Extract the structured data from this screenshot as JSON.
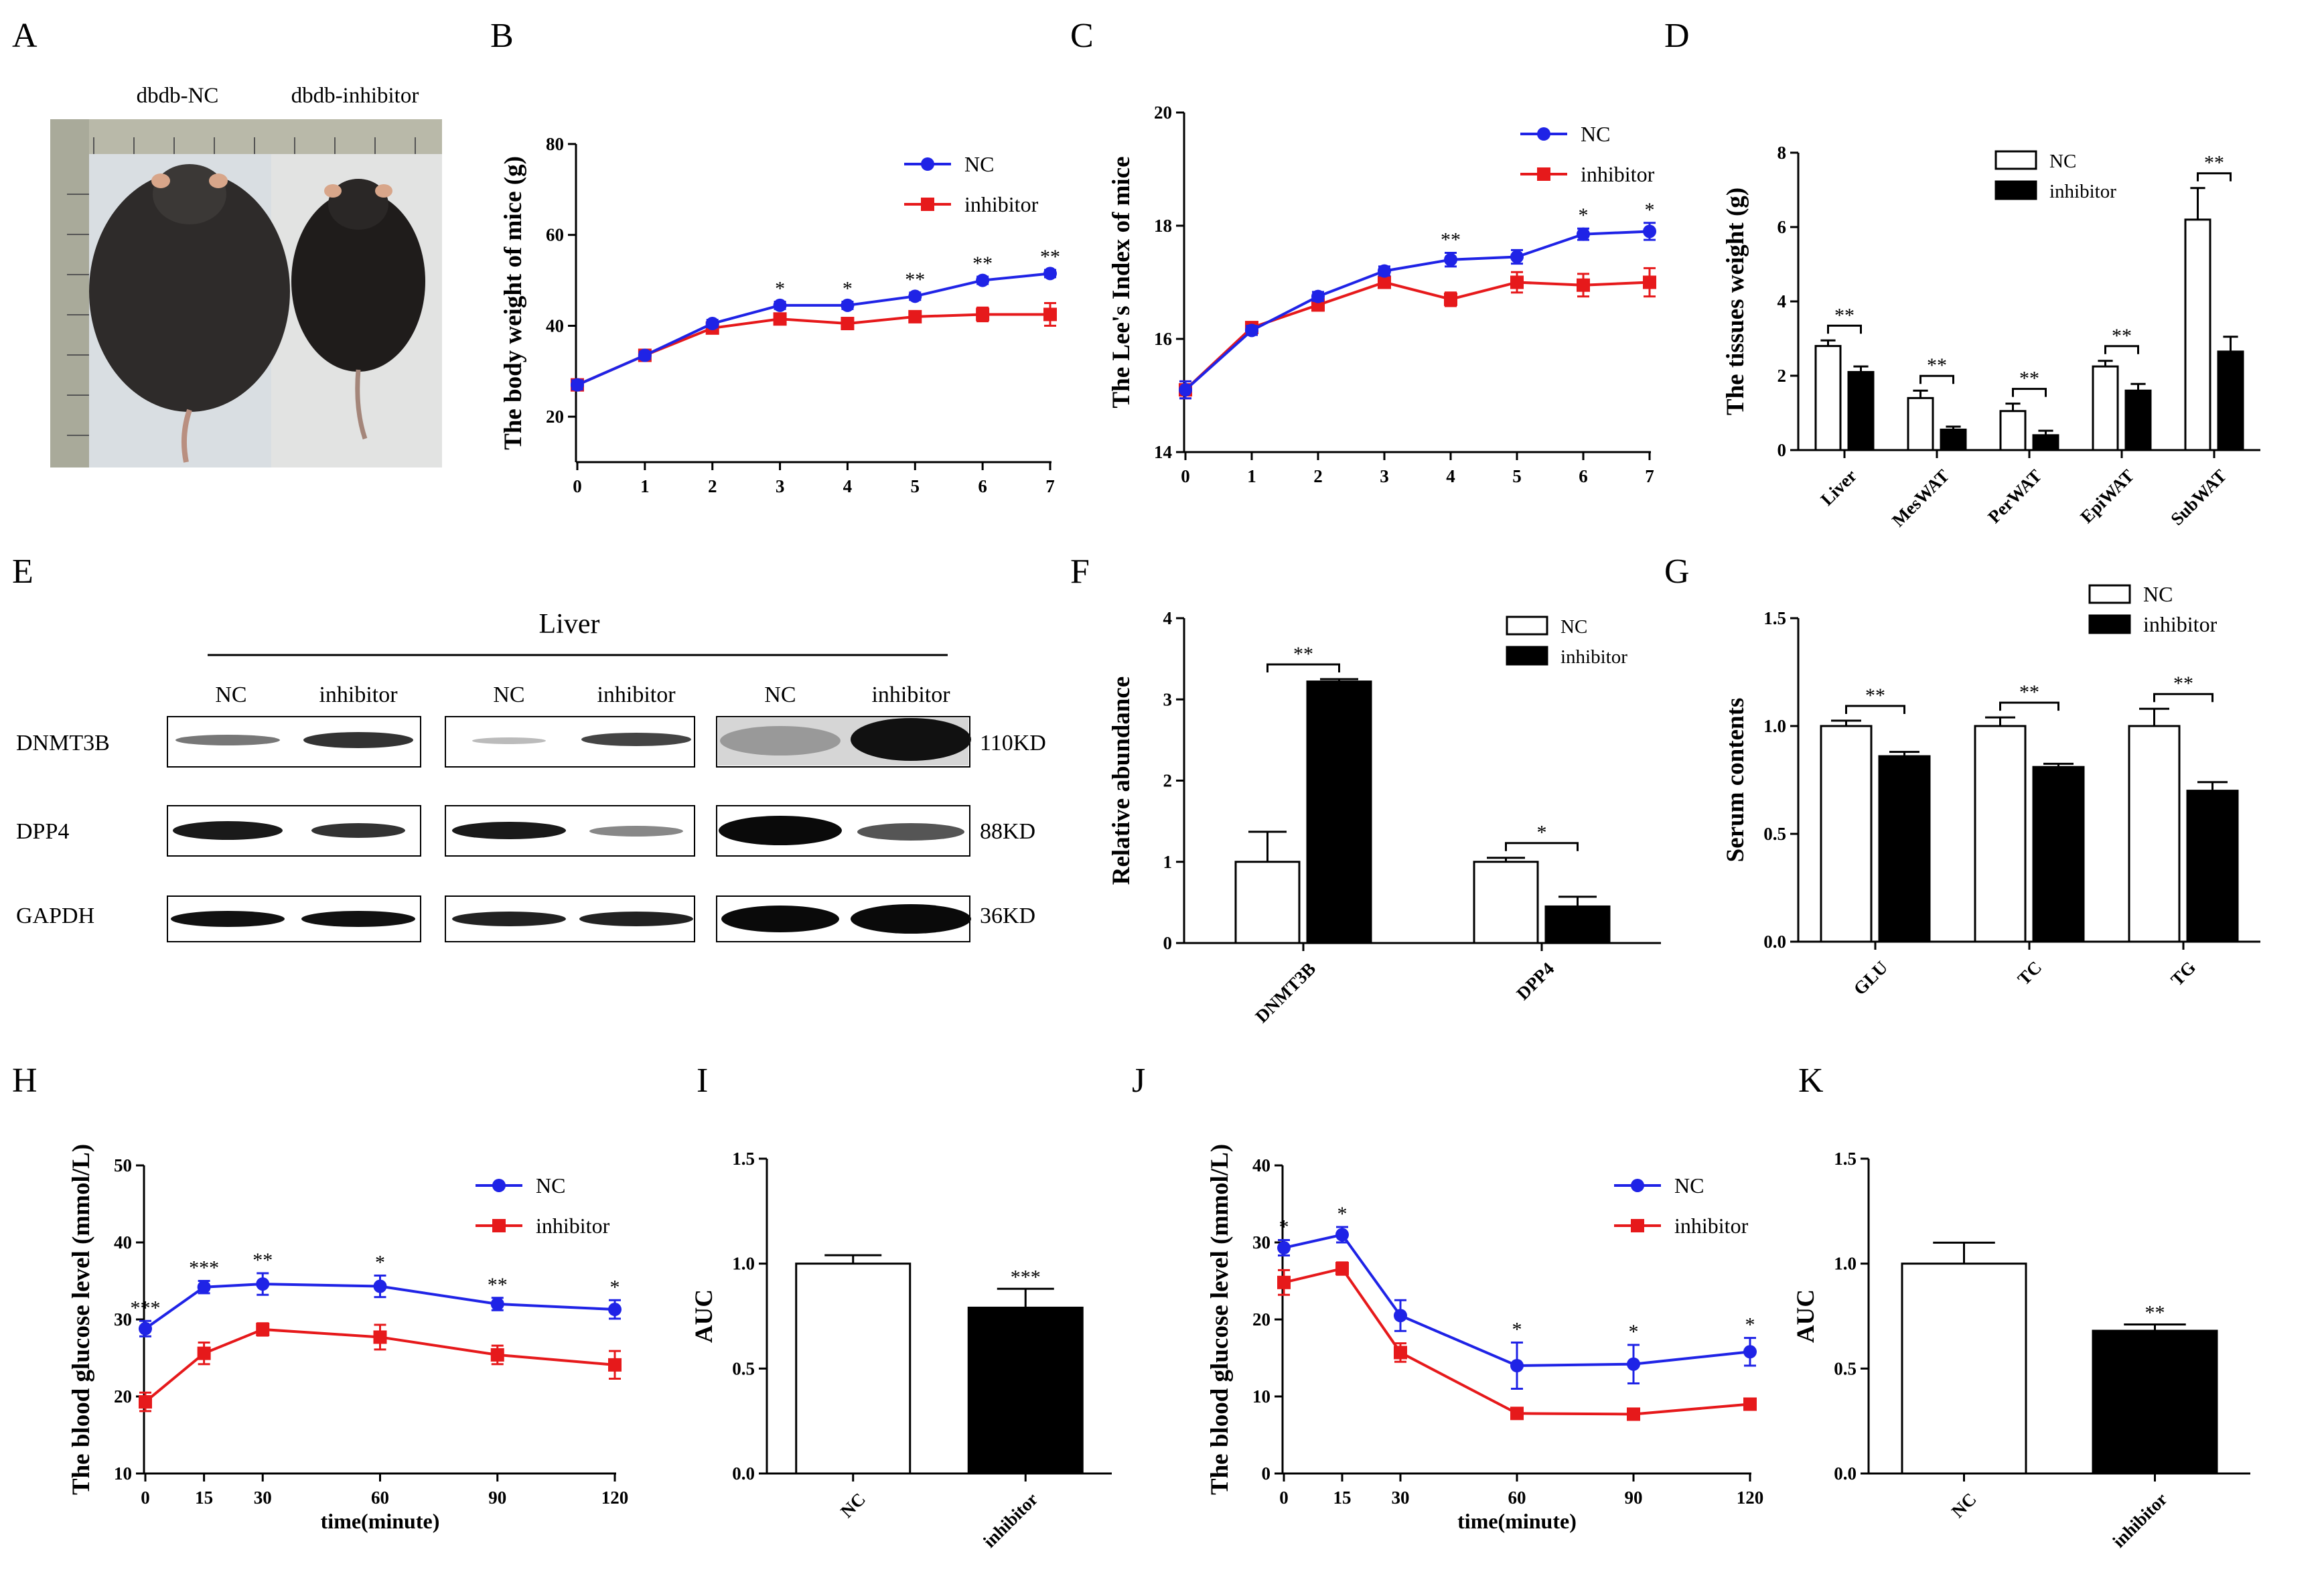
{
  "panel_labels": {
    "A": "A",
    "B": "B",
    "C": "C",
    "D": "D",
    "E": "E",
    "F": "F",
    "G": "G",
    "H": "H",
    "I": "I",
    "J": "J",
    "K": "K"
  },
  "colors": {
    "nc_line": "#1f23e6",
    "inhibitor_line": "#e6191b",
    "bar_nc": "#ffffff",
    "bar_inhibitor": "#000000"
  },
  "photo": {
    "label_nc": "dbdb-NC",
    "label_inhibitor": "dbdb-inhibitor"
  },
  "western": {
    "tissue": "Liver",
    "lanes": [
      "NC",
      "inhibitor",
      "NC",
      "inhibitor",
      "NC",
      "inhibitor"
    ],
    "rows": [
      {
        "protein": "DNMT3B",
        "kd": "110KD"
      },
      {
        "protein": "DPP4",
        "kd": "88KD"
      },
      {
        "protein": "GAPDH",
        "kd": "36KD"
      }
    ]
  },
  "chart_data": [
    {
      "id": "B",
      "type": "line",
      "ylabel": "The body weight of mice (g)",
      "xlabel": "",
      "ylim": [
        10,
        80
      ],
      "yticks": [
        20,
        40,
        60,
        80
      ],
      "x": [
        0,
        1,
        2,
        3,
        4,
        5,
        6,
        7
      ],
      "series": [
        {
          "name": "NC",
          "values": [
            27,
            33.5,
            40.5,
            44.5,
            44.5,
            46.5,
            50,
            51.5
          ],
          "err": [
            1,
            0.8,
            0.8,
            0.8,
            0.8,
            0.8,
            0.8,
            0.8
          ]
        },
        {
          "name": "inhibitor",
          "values": [
            27,
            33.5,
            39.5,
            41.5,
            40.5,
            42,
            42.5,
            42.5
          ],
          "err": [
            1,
            0.8,
            0.8,
            0.8,
            0.8,
            1,
            1.5,
            2.5
          ]
        }
      ],
      "significance": [
        "",
        "",
        "",
        "*",
        "*",
        "**",
        "**",
        "**"
      ]
    },
    {
      "id": "C",
      "type": "line",
      "ylabel": "The Lee's Index of mice",
      "xlabel": "",
      "ylim": [
        14,
        20
      ],
      "yticks": [
        14,
        16,
        18,
        20
      ],
      "x": [
        0,
        1,
        2,
        3,
        4,
        5,
        6,
        7
      ],
      "series": [
        {
          "name": "NC",
          "values": [
            15.1,
            16.15,
            16.75,
            17.2,
            17.4,
            17.45,
            17.85,
            17.9
          ],
          "err": [
            0.15,
            0.08,
            0.08,
            0.08,
            0.12,
            0.12,
            0.1,
            0.15
          ]
        },
        {
          "name": "inhibitor",
          "values": [
            15.1,
            16.2,
            16.6,
            17,
            16.7,
            17,
            16.95,
            17
          ],
          "err": [
            0.15,
            0.08,
            0.1,
            0.1,
            0.12,
            0.18,
            0.2,
            0.25
          ]
        }
      ],
      "significance": [
        "",
        "",
        "",
        "",
        "**",
        "",
        "*",
        "*"
      ]
    },
    {
      "id": "D",
      "type": "bar",
      "ylabel": "The tissues weight (g)",
      "ylim": [
        0,
        8
      ],
      "yticks": [
        0,
        2,
        4,
        6,
        8
      ],
      "categories": [
        "Liver",
        "MesWAT",
        "PerWAT",
        "EpiWAT",
        "SubWAT"
      ],
      "series": [
        {
          "name": "NC",
          "values": [
            2.8,
            1.4,
            1.05,
            2.25,
            6.2
          ],
          "err": [
            0.15,
            0.2,
            0.2,
            0.15,
            0.85
          ]
        },
        {
          "name": "inhibitor",
          "values": [
            2.1,
            0.55,
            0.4,
            1.6,
            2.65
          ],
          "err": [
            0.15,
            0.08,
            0.12,
            0.18,
            0.4
          ]
        }
      ],
      "significance": [
        "**",
        "**",
        "**",
        "**",
        "**"
      ]
    },
    {
      "id": "F",
      "type": "bar",
      "ylabel": "Relative abundance",
      "ylim": [
        0,
        4
      ],
      "yticks": [
        0,
        1,
        2,
        3,
        4
      ],
      "categories": [
        "DNMT3B",
        "DPP4"
      ],
      "series": [
        {
          "name": "NC",
          "values": [
            1.0,
            1.0
          ],
          "err": [
            0.37,
            0.05
          ]
        },
        {
          "name": "inhibitor",
          "values": [
            3.22,
            0.45
          ],
          "err": [
            0.03,
            0.12
          ]
        }
      ],
      "significance": [
        "**",
        "*"
      ]
    },
    {
      "id": "G",
      "type": "bar",
      "ylabel": "Serum contents",
      "ylim": [
        0,
        1.5
      ],
      "yticks": [
        "0.0",
        "0.5",
        "1.0",
        "1.5"
      ],
      "categories": [
        "GLU",
        "TC",
        "TG"
      ],
      "series": [
        {
          "name": "NC",
          "values": [
            1.0,
            1.0,
            1.0
          ],
          "err": [
            0.025,
            0.04,
            0.08
          ]
        },
        {
          "name": "inhibitor",
          "values": [
            0.86,
            0.81,
            0.7
          ],
          "err": [
            0.02,
            0.015,
            0.04
          ]
        }
      ],
      "significance": [
        "**",
        "**",
        "**"
      ]
    },
    {
      "id": "H",
      "type": "line",
      "ylabel": "The blood glucose level (mmol/L)",
      "xlabel": "time(minute)",
      "ylim": [
        10,
        50
      ],
      "yticks": [
        10,
        20,
        30,
        40,
        50
      ],
      "x": [
        0,
        15,
        30,
        60,
        90,
        120
      ],
      "series": [
        {
          "name": "NC",
          "values": [
            28.8,
            34.2,
            34.6,
            34.3,
            32,
            31.3
          ],
          "err": [
            1,
            0.8,
            1.4,
            1.4,
            0.8,
            1.2
          ]
        },
        {
          "name": "inhibitor",
          "values": [
            19.3,
            25.6,
            28.7,
            27.7,
            25.4,
            24.1
          ],
          "err": [
            1.2,
            1.4,
            0.8,
            1.6,
            1.2,
            1.8
          ]
        }
      ],
      "significance": [
        "***",
        "***",
        "**",
        "*",
        "**",
        "*"
      ]
    },
    {
      "id": "I",
      "type": "bar",
      "ylabel": "AUC",
      "ylim": [
        0,
        1.5
      ],
      "yticks": [
        "0.0",
        "0.5",
        "1.0",
        "1.5"
      ],
      "categories": [
        "NC",
        "inhibitor"
      ],
      "values": [
        1.0,
        0.79
      ],
      "err": [
        0.04,
        0.09
      ],
      "significance": [
        "",
        "***"
      ]
    },
    {
      "id": "J",
      "type": "line",
      "ylabel": "The blood glucose level (mmol/L)",
      "xlabel": "time(minute)",
      "ylim": [
        0,
        40
      ],
      "yticks": [
        0,
        10,
        20,
        30,
        40
      ],
      "x": [
        0,
        15,
        30,
        60,
        90,
        120
      ],
      "series": [
        {
          "name": "NC",
          "values": [
            29.3,
            31,
            20.5,
            14,
            14.2,
            15.8
          ],
          "err": [
            1,
            1,
            2,
            3,
            2.5,
            1.8
          ]
        },
        {
          "name": "inhibitor",
          "values": [
            24.8,
            26.6,
            15.7,
            7.8,
            7.7,
            9
          ],
          "err": [
            1.6,
            0.8,
            1.2,
            0.4,
            0.3,
            0.4
          ]
        }
      ],
      "significance": [
        "*",
        "*",
        "",
        "*",
        "*",
        "*"
      ]
    },
    {
      "id": "K",
      "type": "bar",
      "ylabel": "AUC",
      "ylim": [
        0,
        1.5
      ],
      "yticks": [
        "0.0",
        "0.5",
        "1.0",
        "1.5"
      ],
      "categories": [
        "NC",
        "inhibitor"
      ],
      "values": [
        1.0,
        0.68
      ],
      "err": [
        0.1,
        0.03
      ],
      "significance": [
        "",
        "**"
      ]
    }
  ]
}
